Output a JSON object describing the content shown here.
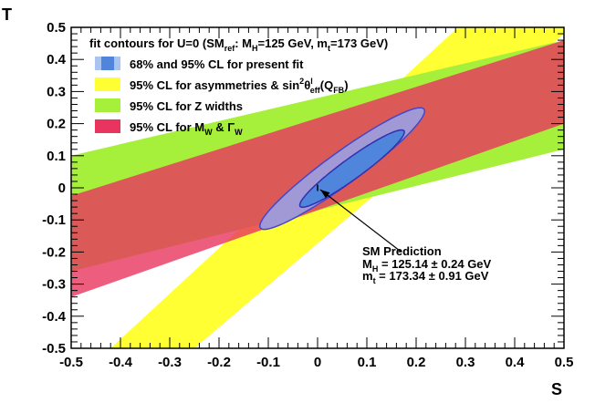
{
  "chart_data": {
    "type": "contour",
    "title": "fit contours for U=0 (SM_ref: M_H=125 GeV, m_t=173 GeV)",
    "xlabel": "S",
    "ylabel": "T",
    "xlim": [
      -0.5,
      0.5
    ],
    "ylim": [
      -0.5,
      0.5
    ],
    "x_ticks": [
      "-0.5",
      "-0.4",
      "-0.3",
      "-0.2",
      "-0.1",
      "0",
      "0.1",
      "0.2",
      "0.3",
      "0.4",
      "0.5"
    ],
    "y_ticks": [
      "-0.5",
      "-0.4",
      "-0.3",
      "-0.2",
      "-0.1",
      "0",
      "0.1",
      "0.2",
      "0.3",
      "0.4",
      "0.5"
    ],
    "legend_title": {
      "prefix": "fit contours for U=0 (SM",
      "ref": "ref",
      "mid": ": M",
      "h": "H",
      "mid2": "=125 GeV, m",
      "t": "t",
      "suffix": "=173 GeV)"
    },
    "legend": [
      {
        "name": "68% and 95% CL for present fit",
        "color": "#5a8fe0"
      },
      {
        "name": "95% CL for asymmetries & sin²θ^l_eff(Q_FB)",
        "color": "#ffff33",
        "p1": "95% CL for asymmetries & sin",
        "p2": "2",
        "p3": "θ",
        "p4": "l",
        "p5": "eff",
        "p6": "(Q",
        "p7": "FB",
        "p8": ")"
      },
      {
        "name": "95% CL for Z widths",
        "color": "#a6f03c"
      },
      {
        "name": "95% CL for M_W & Γ_W",
        "color": "#e8345e",
        "p1": "95% CL for M",
        "p2": "W",
        "p3": " & ",
        "p4": "Γ",
        "p5": "W"
      }
    ],
    "bands": [
      {
        "name": "asymmetries",
        "color": "#ffff33",
        "polygon": [
          [
            -0.42,
            -0.5
          ],
          [
            -0.25,
            -0.5
          ],
          [
            0.5,
            0.48
          ],
          [
            0.5,
            0.5
          ],
          [
            0.285,
            0.5
          ]
        ]
      },
      {
        "name": "z-widths",
        "color": "#a6f03c",
        "polygon": [
          [
            -0.5,
            0.1
          ],
          [
            -0.5,
            -0.26
          ],
          [
            0.5,
            0.12
          ],
          [
            0.5,
            0.46
          ]
        ]
      },
      {
        "name": "mw-gammaw",
        "color": "#e8345e",
        "opacity": 0.8,
        "polygon": [
          [
            -0.5,
            -0.025
          ],
          [
            -0.5,
            -0.34
          ],
          [
            0.5,
            0.2
          ],
          [
            0.5,
            0.46
          ]
        ]
      }
    ],
    "ellipses": [
      {
        "name": "95CL",
        "center": [
          0.05,
          0.06
        ],
        "semi_major": 0.315,
        "semi_minor": 0.05,
        "angle_deg": 36,
        "fill": "#a099d6",
        "stroke": "#4646c8"
      },
      {
        "name": "68CL",
        "center": [
          0.07,
          0.06
        ],
        "semi_major": 0.2,
        "semi_minor": 0.032,
        "angle_deg": 36,
        "fill": "#4f86db",
        "stroke": "#3030b0"
      }
    ],
    "sm_prediction": {
      "point": [
        0.0,
        0.0
      ],
      "error_t": 0.01,
      "label": "SM Prediction",
      "mh": {
        "prefix": "M",
        "sub": "H",
        "value": " = 125.14 ± 0.24 GeV"
      },
      "mt": {
        "prefix": "m",
        "sub": "t",
        "value": " = 173.34 ± 0.91 GeV"
      },
      "arrow_from": [
        0.17,
        -0.2
      ]
    }
  },
  "colors": {
    "frame": "#000000",
    "background": "#ffffff"
  }
}
